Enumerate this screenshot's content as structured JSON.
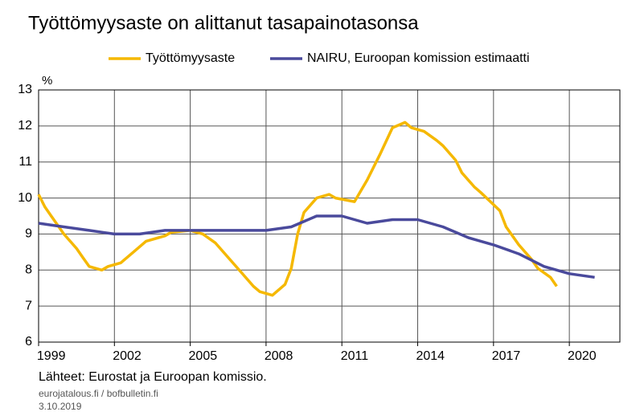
{
  "chart_data": {
    "type": "line",
    "title": "Työttömyysaste on alittanut tasapainotasonsa",
    "y_label": "%",
    "source": "Lähteet: Eurostat ja Euroopan komissio.",
    "footer": [
      "eurojatalous.fi  / bofbulletin.fi",
      "3.10.2019"
    ],
    "legend": "top",
    "grid": true,
    "xlim": [
      1999,
      2022
    ],
    "xticks": [
      1999,
      2002,
      2005,
      2008,
      2011,
      2014,
      2017,
      2020
    ],
    "ylim": [
      6,
      13
    ],
    "yticks": [
      6,
      7,
      8,
      9,
      10,
      11,
      12,
      13
    ],
    "series": [
      {
        "name": "Työttömyysaste",
        "color": "#f5b800",
        "x": [
          1999,
          1999.25,
          1999.5,
          2000,
          2000.5,
          2000.75,
          2001,
          2001.5,
          2001.75,
          2002.25,
          2002.75,
          2003.25,
          2004,
          2004.25,
          2005,
          2005.5,
          2006,
          2006.5,
          2007,
          2007.5,
          2007.75,
          2008.25,
          2008.75,
          2009,
          2009.25,
          2009.5,
          2010,
          2010.5,
          2010.75,
          2011.5,
          2012,
          2012.5,
          2013,
          2013.5,
          2013.75,
          2014.25,
          2014.75,
          2015,
          2015.5,
          2015.75,
          2016.25,
          2016.5,
          2017.25,
          2017.5,
          2018,
          2018.5,
          2018.75,
          2019.25,
          2019.5
        ],
        "values": [
          10.1,
          9.75,
          9.5,
          9.0,
          8.6,
          8.35,
          8.1,
          8.0,
          8.1,
          8.2,
          8.5,
          8.8,
          8.95,
          9.05,
          9.1,
          9.0,
          8.75,
          8.35,
          7.95,
          7.55,
          7.4,
          7.3,
          7.6,
          8.05,
          9.0,
          9.6,
          10.0,
          10.1,
          10.0,
          9.9,
          10.5,
          11.2,
          11.95,
          12.1,
          11.95,
          11.85,
          11.6,
          11.45,
          11.05,
          10.7,
          10.3,
          10.15,
          9.65,
          9.2,
          8.7,
          8.3,
          8.05,
          7.8,
          7.55
        ]
      },
      {
        "name": "NAIRU, Euroopan komission estimaatti",
        "color": "#4a4a9c",
        "x": [
          1999,
          2000,
          2001,
          2002,
          2003,
          2004,
          2005,
          2006,
          2007,
          2008,
          2009,
          2010,
          2011,
          2012,
          2013,
          2014,
          2015,
          2016,
          2017,
          2018,
          2019,
          2020,
          2021
        ],
        "values": [
          9.3,
          9.2,
          9.1,
          9.0,
          9.0,
          9.1,
          9.1,
          9.1,
          9.1,
          9.1,
          9.2,
          9.5,
          9.5,
          9.3,
          9.4,
          9.4,
          9.2,
          8.9,
          8.7,
          8.45,
          8.1,
          7.9,
          7.8
        ]
      }
    ]
  }
}
